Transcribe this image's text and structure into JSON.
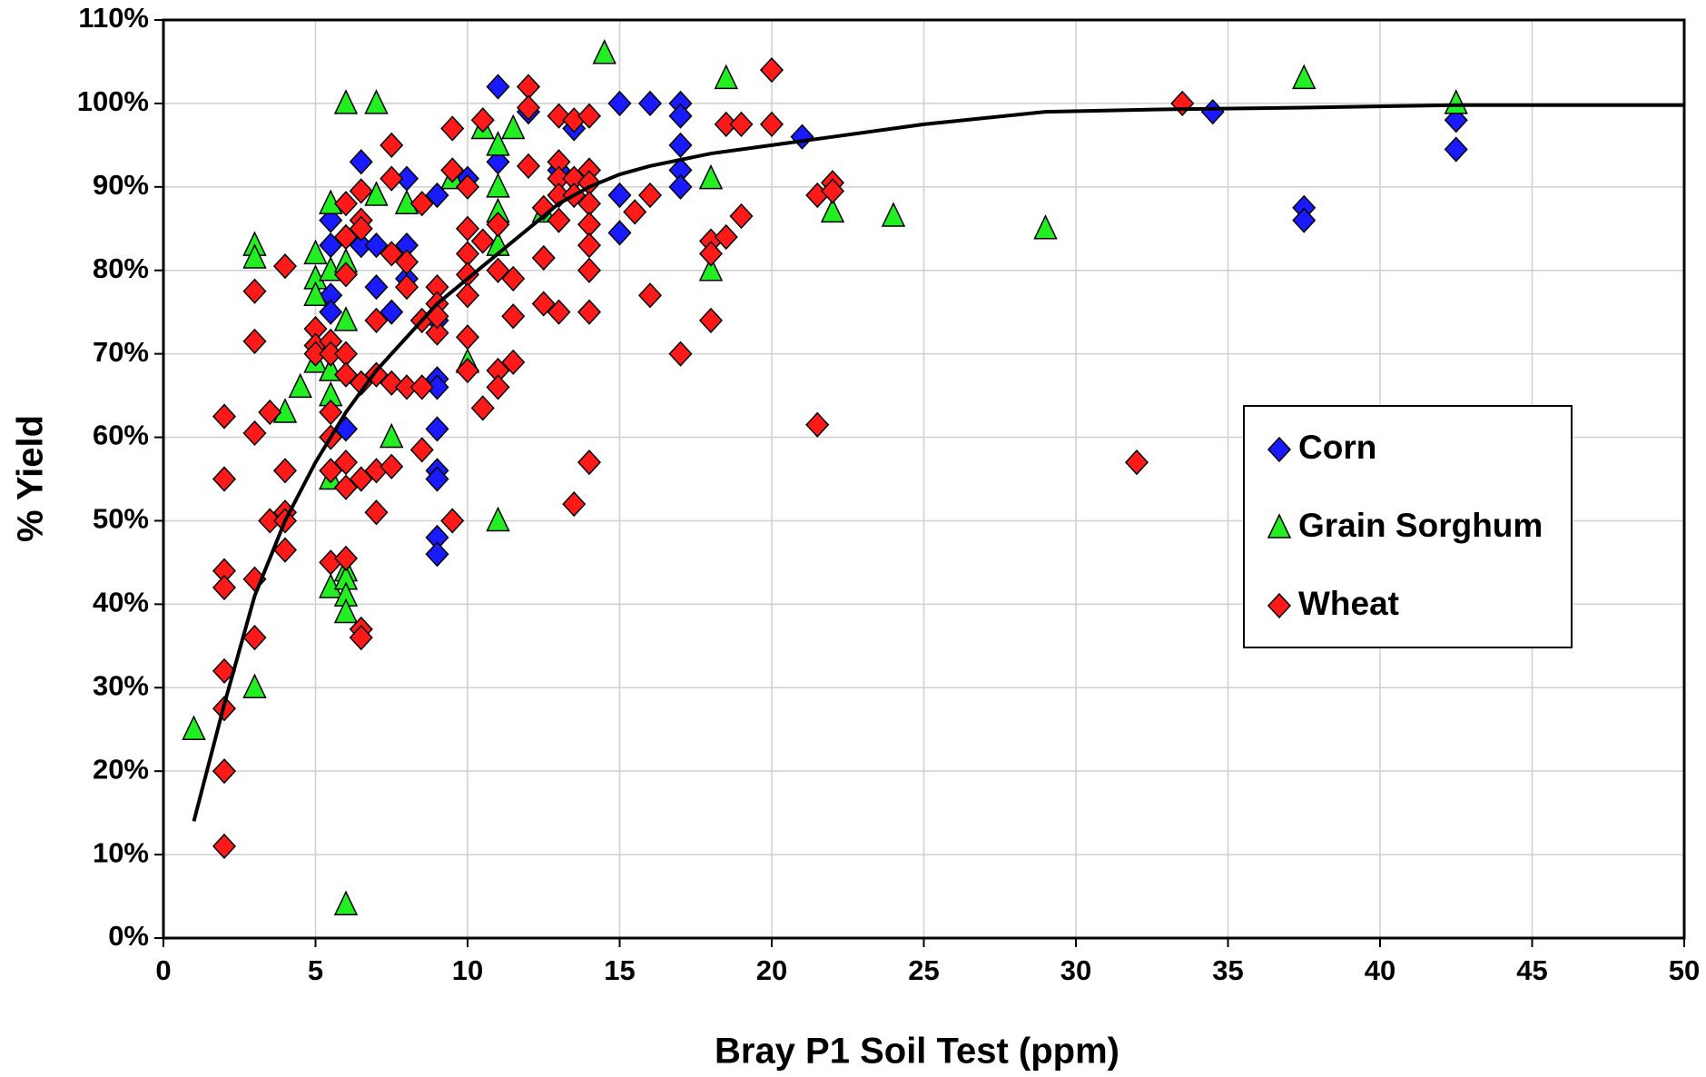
{
  "chart_data": {
    "type": "scatter",
    "x_label": "Bray P1 Soil Test (ppm)",
    "y_label": "% Yield",
    "xlim": [
      0,
      50
    ],
    "xticks": [
      0,
      5,
      10,
      15,
      20,
      25,
      30,
      35,
      40,
      45,
      50
    ],
    "ylim": [
      0,
      110
    ],
    "yticks": [
      {
        "value": 0,
        "label": "0%"
      },
      {
        "value": 10,
        "label": "10%"
      },
      {
        "value": 20,
        "label": "20%"
      },
      {
        "value": 30,
        "label": "30%"
      },
      {
        "value": 40,
        "label": "40%"
      },
      {
        "value": 50,
        "label": "50%"
      },
      {
        "value": 60,
        "label": "60%"
      },
      {
        "value": 70,
        "label": "70%"
      },
      {
        "value": 80,
        "label": "80%"
      },
      {
        "value": 90,
        "label": "90%"
      },
      {
        "value": 100,
        "label": "100%"
      },
      {
        "value": 110,
        "label": "110%"
      }
    ],
    "grid": true,
    "series": [
      {
        "name": "Corn",
        "color": "#1a1aff",
        "marker": "diamond",
        "x": [
          5.5,
          5.5,
          5.5,
          5.5,
          6,
          6,
          6.5,
          6.5,
          7,
          7,
          7.5,
          8,
          8,
          8,
          9,
          9,
          9,
          9,
          9,
          9,
          9,
          9,
          9,
          10,
          11,
          11,
          12,
          13,
          13.5,
          15,
          15,
          15,
          16,
          17,
          17,
          17,
          17,
          17,
          21,
          34.5,
          37.5,
          37.5,
          42.5,
          42.5
        ],
        "values": [
          86,
          83,
          77,
          75,
          84,
          61,
          93,
          83,
          83,
          78,
          75,
          91,
          83,
          79,
          89,
          74,
          67,
          66,
          61,
          56,
          55,
          48,
          46,
          91,
          102,
          93,
          99,
          92,
          97,
          100,
          89,
          84.5,
          100,
          100,
          98.5,
          95,
          92,
          90,
          96,
          99,
          87.5,
          86,
          98,
          94.5
        ]
      },
      {
        "name": "Grain Sorghum",
        "color": "#22ee22",
        "marker": "triangle",
        "x": [
          1,
          3,
          3,
          3,
          4,
          4.5,
          5,
          5,
          5,
          5,
          5.5,
          5.5,
          5.5,
          5.5,
          5.5,
          5.5,
          6,
          6,
          6,
          6,
          6,
          6,
          6,
          6,
          7,
          7,
          7.5,
          8,
          9.5,
          10,
          10.5,
          11,
          11,
          11,
          11,
          11,
          11.5,
          12.5,
          14.5,
          18,
          18,
          18.5,
          22,
          24,
          29,
          37.5,
          42.5
        ],
        "values": [
          25,
          83,
          81.5,
          30,
          63,
          66,
          82,
          79,
          77,
          69,
          88,
          80,
          68,
          65,
          55,
          42,
          100,
          81,
          74,
          44,
          43,
          41,
          39,
          4,
          100,
          89,
          60,
          88,
          91,
          69,
          97,
          95,
          90,
          87,
          83,
          50,
          97,
          87,
          106,
          91,
          80,
          103,
          87,
          86.5,
          85,
          103,
          100
        ]
      },
      {
        "name": "Wheat",
        "color": "#ff1a1a",
        "marker": "diamond",
        "x": [
          2,
          2,
          2,
          2,
          2,
          2,
          2,
          2,
          3,
          3,
          3,
          3,
          3,
          3.5,
          3.5,
          4,
          4,
          4,
          4,
          4,
          5,
          5,
          5,
          5.5,
          5.5,
          5.5,
          5.5,
          5.5,
          5.5,
          6,
          6,
          6,
          6,
          6,
          6,
          6,
          6,
          6.5,
          6.5,
          6.5,
          6.5,
          6.5,
          6.5,
          6.5,
          7,
          7,
          7,
          7,
          7.5,
          7.5,
          7.5,
          7.5,
          7.5,
          8,
          8,
          8,
          8.5,
          8.5,
          8.5,
          8.5,
          9,
          9,
          9,
          9,
          9.5,
          9.5,
          9.5,
          10,
          10,
          10,
          10,
          10,
          10,
          10,
          10.5,
          10.5,
          10.5,
          11,
          11,
          11,
          11,
          11.5,
          11.5,
          11.5,
          12,
          12,
          12,
          12.5,
          12.5,
          12.5,
          13,
          13,
          13,
          13,
          13,
          13,
          13.5,
          13.5,
          13.5,
          13.5,
          14,
          14,
          14,
          14,
          14,
          14,
          14,
          14,
          14,
          15.5,
          16,
          16,
          17,
          18,
          18,
          18,
          18.5,
          18.5,
          19,
          19,
          20,
          20,
          21.5,
          21.5,
          22,
          22,
          32,
          33.5
        ],
        "values": [
          62.5,
          55,
          44,
          42,
          32,
          27.5,
          20,
          11,
          77.5,
          71.5,
          60.5,
          43,
          36,
          63,
          50,
          80.5,
          56,
          51,
          50,
          46.5,
          73,
          71,
          70,
          71.5,
          70,
          63,
          60,
          56,
          45,
          88,
          84,
          79.5,
          70,
          67.5,
          57,
          54,
          45.5,
          89.5,
          86,
          85,
          66.5,
          55,
          37,
          36,
          74,
          67.5,
          56,
          51,
          95,
          91,
          82,
          66.5,
          56.5,
          81,
          78,
          66,
          88,
          74,
          66,
          58.5,
          78,
          76,
          72.5,
          74.5,
          97,
          92,
          50,
          90,
          85,
          82,
          79.5,
          77,
          72,
          68,
          98,
          83.5,
          63.5,
          85.5,
          80,
          68,
          66,
          79,
          74.5,
          69,
          102,
          99.5,
          92.5,
          87.5,
          81.5,
          76,
          98.5,
          93,
          91,
          89,
          86,
          75,
          98,
          91,
          89,
          52,
          98.5,
          92,
          90.5,
          88,
          85.5,
          83,
          80,
          75,
          57,
          87,
          89,
          77,
          70,
          83.5,
          82,
          74,
          97.5,
          84,
          97.5,
          86.5,
          104,
          97.5,
          89,
          61.5,
          90.5,
          89.5,
          57,
          100
        ]
      }
    ],
    "fit_line": {
      "color": "#000000",
      "x": [
        1,
        2,
        3,
        4,
        5,
        6,
        7,
        8,
        9,
        10,
        11,
        12,
        13,
        14,
        15,
        16,
        18,
        20,
        22,
        25,
        29,
        33,
        37.5,
        42.5,
        50
      ],
      "values": [
        14,
        28,
        41,
        50,
        57,
        63,
        68,
        72,
        76,
        79,
        82,
        85,
        88,
        90,
        91.5,
        92.5,
        94,
        95,
        96,
        97.5,
        99,
        99.3,
        99.5,
        99.8,
        99.8
      ]
    }
  }
}
